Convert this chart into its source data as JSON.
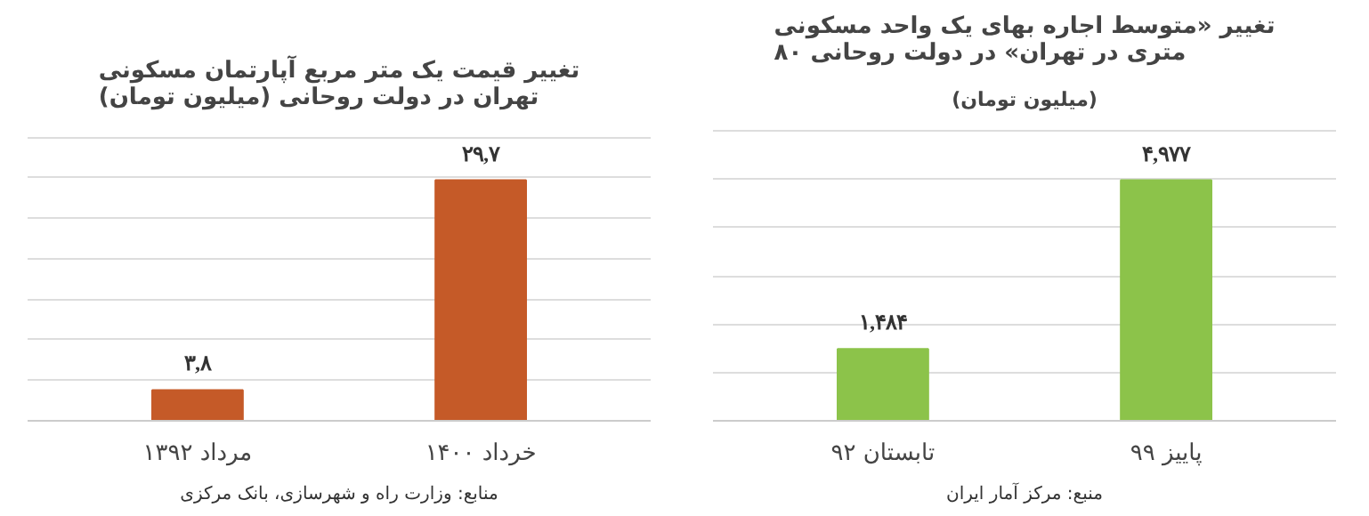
{
  "chart_data": [
    {
      "type": "bar",
      "title": "تغییر قیمت یک متر مربع آپارتمان مسکونی\nتهران در دولت روحانی (میلیون تومان)",
      "categories": [
        "مرداد ۱۳۹۲",
        "خرداد ۱۴۰۰"
      ],
      "values": [
        3.8,
        29.7
      ],
      "value_labels": [
        "۳,۸",
        "۲۹,۷"
      ],
      "color": "#c55a28",
      "grid": "y",
      "annotations": [
        "منابع: وزارت راه و شهرسازی، بانک مرکزی"
      ]
    },
    {
      "type": "bar",
      "title": "تغییر «متوسط اجاره بهای یک واحد مسکونی\n۸۰ متری در تهران» در دولت روحانی",
      "subtitle": "(میلیون تومان)",
      "categories": [
        "تابستان ۹۲",
        "پاییز ۹۹"
      ],
      "values": [
        1.484,
        4.977
      ],
      "value_labels": [
        "۱,۴۸۴",
        "۴,۹۷۷"
      ],
      "color": "#8cc34a",
      "grid": "y",
      "annotations": [
        "منبع: مرکز آمار ایران"
      ]
    }
  ]
}
